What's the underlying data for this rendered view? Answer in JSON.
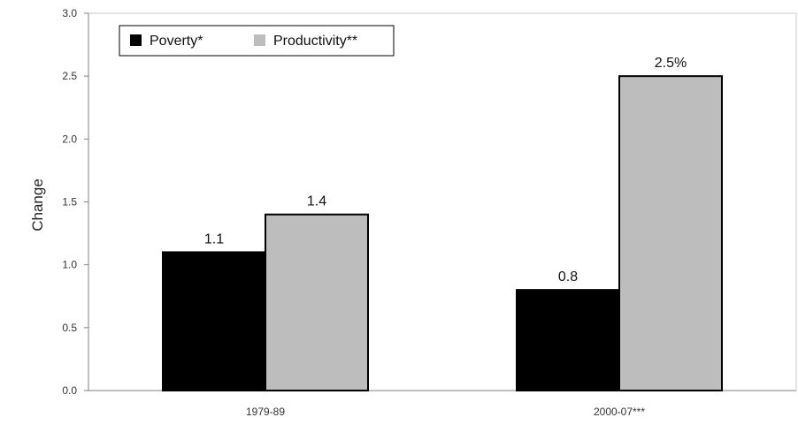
{
  "chart_data": {
    "type": "bar",
    "categories": [
      "1979-89",
      "2000-07***"
    ],
    "series": [
      {
        "name": "Poverty*",
        "values": [
          1.1,
          0.8
        ],
        "labels": [
          "1.1",
          "0.8"
        ],
        "color": "#000000"
      },
      {
        "name": "Productivity**",
        "values": [
          1.4,
          2.5
        ],
        "labels": [
          "1.4",
          "2.5%"
        ],
        "color": "#bdbdbd"
      }
    ],
    "ylabel": "Change",
    "ylim": [
      0,
      3.0
    ],
    "yticks": [
      "0.0",
      "0.5",
      "1.0",
      "1.5",
      "2.0",
      "2.5",
      "3.0"
    ],
    "grid": false,
    "legend_position": "top-left"
  }
}
